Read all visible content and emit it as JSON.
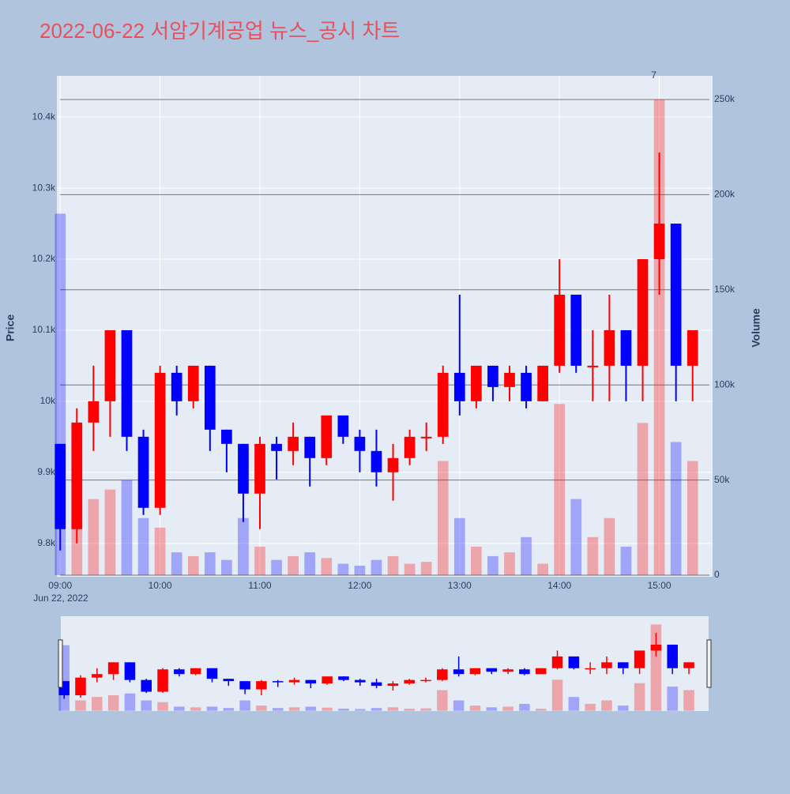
{
  "chart_data": {
    "type": "candlestick",
    "title": "2022-06-22 서암기계공업 뉴스_공시 차트",
    "ylabel": "Price",
    "y2label": "Volume",
    "x_date_label": "Jun 22, 2022",
    "increasing_color": "#ff0000",
    "decreasing_color": "#0000ff",
    "annotations": [
      {
        "text": "7",
        "x": "2022-06-22 15:00"
      }
    ],
    "x": [
      "2022-06-22 09:00",
      "2022-06-22 09:10",
      "2022-06-22 09:20",
      "2022-06-22 09:30",
      "2022-06-22 09:40",
      "2022-06-22 09:50",
      "2022-06-22 10:00",
      "2022-06-22 10:10",
      "2022-06-22 10:20",
      "2022-06-22 10:30",
      "2022-06-22 10:40",
      "2022-06-22 10:50",
      "2022-06-22 11:00",
      "2022-06-22 11:10",
      "2022-06-22 11:20",
      "2022-06-22 11:30",
      "2022-06-22 11:40",
      "2022-06-22 11:50",
      "2022-06-22 12:00",
      "2022-06-22 12:10",
      "2022-06-22 12:20",
      "2022-06-22 12:30",
      "2022-06-22 12:40",
      "2022-06-22 12:50",
      "2022-06-22 13:00",
      "2022-06-22 13:10",
      "2022-06-22 13:20",
      "2022-06-22 13:30",
      "2022-06-22 13:40",
      "2022-06-22 13:50",
      "2022-06-22 14:00",
      "2022-06-22 14:10",
      "2022-06-22 14:20",
      "2022-06-22 14:30",
      "2022-06-22 14:40",
      "2022-06-22 14:50",
      "2022-06-22 15:00",
      "2022-06-22 15:10",
      "2022-06-22 15:20"
    ],
    "open": [
      9940,
      9820,
      9970,
      10000,
      10100,
      9950,
      9850,
      10040,
      10000,
      10050,
      9960,
      9940,
      9870,
      9940,
      9930,
      9950,
      9920,
      9980,
      9950,
      9930,
      9900,
      9920,
      9950,
      9950,
      10040,
      10000,
      10050,
      10020,
      10040,
      10000,
      10050,
      10150,
      10050,
      10050,
      10100,
      10050,
      10200,
      10250,
      10050
    ],
    "high": [
      9940,
      9990,
      10050,
      10100,
      10100,
      9960,
      10050,
      10050,
      10050,
      10050,
      9960,
      9940,
      9950,
      9950,
      9970,
      9950,
      9980,
      9980,
      9960,
      9960,
      9940,
      9960,
      9970,
      10050,
      10150,
      10050,
      10050,
      10050,
      10050,
      10050,
      10200,
      10150,
      10100,
      10150,
      10100,
      10200,
      10350,
      10250,
      10100
    ],
    "low": [
      9790,
      9800,
      9930,
      9950,
      9930,
      9840,
      9840,
      9980,
      9990,
      9930,
      9900,
      9830,
      9820,
      9890,
      9910,
      9880,
      9910,
      9940,
      9900,
      9880,
      9860,
      9910,
      9930,
      9940,
      9980,
      9990,
      10000,
      10000,
      9990,
      10000,
      10040,
      10040,
      10000,
      10000,
      10000,
      10000,
      10150,
      10000,
      10000
    ],
    "close": [
      9820,
      9970,
      10000,
      10100,
      9950,
      9850,
      10040,
      10000,
      10050,
      9960,
      9940,
      9870,
      9940,
      9930,
      9950,
      9920,
      9980,
      9950,
      9930,
      9900,
      9920,
      9950,
      9950,
      10040,
      10000,
      10050,
      10020,
      10040,
      10000,
      10050,
      10150,
      10050,
      10050,
      10100,
      10050,
      10200,
      10250,
      10050,
      10100
    ],
    "volume": [
      190000,
      30000,
      40000,
      45000,
      50000,
      30000,
      25000,
      12000,
      10000,
      12000,
      8000,
      30000,
      15000,
      8000,
      10000,
      12000,
      9000,
      6000,
      5000,
      8000,
      10000,
      6000,
      7000,
      60000,
      30000,
      15000,
      10000,
      12000,
      20000,
      6000,
      90000,
      40000,
      20000,
      30000,
      15000,
      80000,
      250000,
      70000,
      60000
    ],
    "xlim": [
      "2022-06-22 08:58",
      "2022-06-22 15:32"
    ],
    "xticks": [
      {
        "value": "2022-06-22 09:00",
        "label": "09:00"
      },
      {
        "value": "2022-06-22 10:00",
        "label": "10:00"
      },
      {
        "value": "2022-06-22 11:00",
        "label": "11:00"
      },
      {
        "value": "2022-06-22 12:00",
        "label": "12:00"
      },
      {
        "value": "2022-06-22 13:00",
        "label": "13:00"
      },
      {
        "value": "2022-06-22 14:00",
        "label": "14:00"
      },
      {
        "value": "2022-06-22 15:00",
        "label": "15:00"
      }
    ],
    "ylim": [
      9753,
      10458
    ],
    "yticks": [
      {
        "value": 9800,
        "label": "9.8k"
      },
      {
        "value": 9900,
        "label": "9.9k"
      },
      {
        "value": 10000,
        "label": "10k"
      },
      {
        "value": 10100,
        "label": "10.1k"
      },
      {
        "value": 10200,
        "label": "10.2k"
      },
      {
        "value": 10300,
        "label": "10.3k"
      },
      {
        "value": 10400,
        "label": "10.4k"
      }
    ],
    "y2lim": [
      -830,
      262460
    ],
    "y2ticks": [
      0,
      {
        "value": 50000,
        "label": "50k"
      },
      {
        "value": 100000,
        "label": "100k"
      },
      {
        "value": 150000,
        "label": "150k"
      },
      {
        "value": 200000,
        "label": "200k"
      },
      {
        "value": 250000,
        "label": "250k"
      }
    ],
    "grid": true,
    "rangeslider": true
  }
}
